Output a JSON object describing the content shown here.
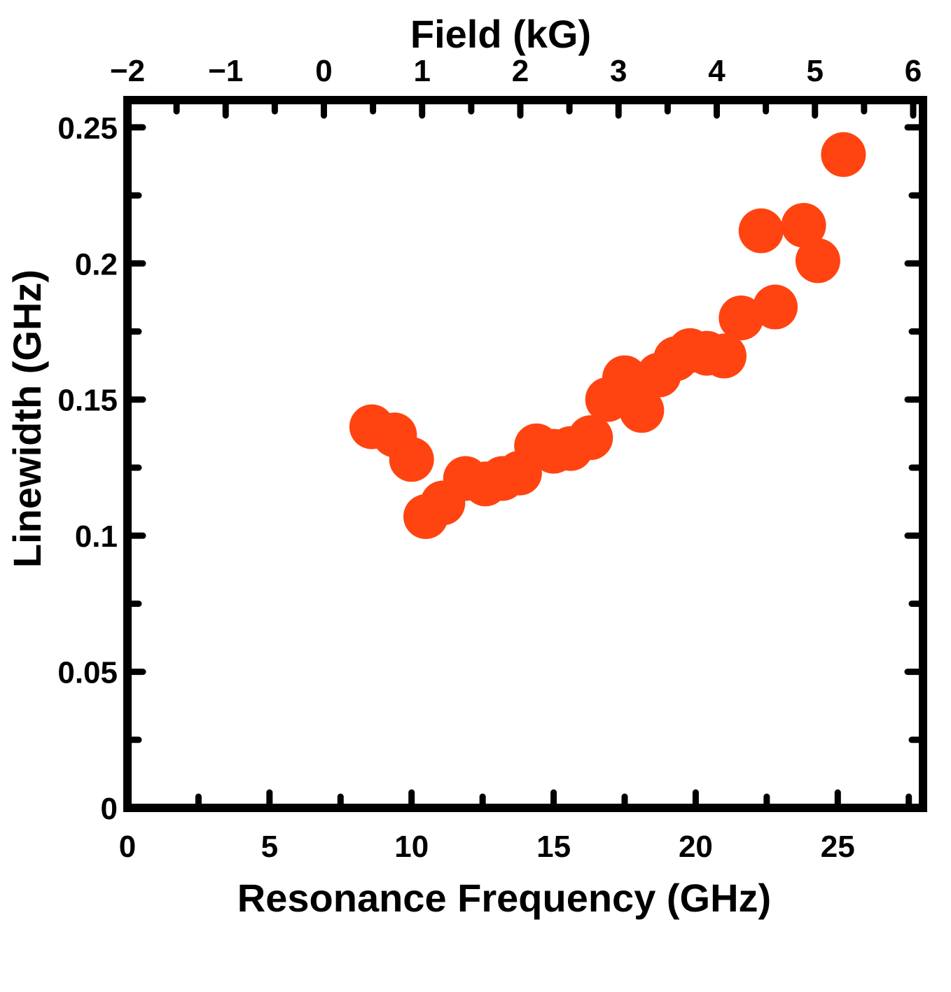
{
  "chart_data": {
    "type": "scatter",
    "title": "",
    "xlabel": "Resonance Frequency (GHz)",
    "ylabel": "Linewidth (GHz)",
    "top_xlabel": "Field (kG)",
    "xlim": [
      0,
      28
    ],
    "ylim": [
      0,
      0.26
    ],
    "top_xlim": [
      -2,
      6.1
    ],
    "xticks": [
      0,
      5,
      10,
      15,
      20,
      25
    ],
    "xtick_labels": [
      "0",
      "5",
      "10",
      "15",
      "20",
      "25"
    ],
    "yticks": [
      0,
      0.05,
      0.1,
      0.15,
      0.2,
      0.25
    ],
    "ytick_labels": [
      "0",
      "0.05",
      "0.1",
      "0.15",
      "0.2",
      "0.25"
    ],
    "top_xticks": [
      -2,
      -1,
      0,
      1,
      2,
      3,
      4,
      5,
      6
    ],
    "top_xtick_labels": [
      "−2",
      "−1",
      "0",
      "1",
      "2",
      "3",
      "4",
      "5",
      "6"
    ],
    "grid": false,
    "marker_color": "#ff4411",
    "series": [
      {
        "x": [
          8.6,
          9.4,
          10.0,
          10.5,
          11.1,
          11.9,
          12.6,
          13.2,
          13.8,
          14.4,
          15.0,
          15.6,
          16.3,
          16.9,
          17.5,
          18.1,
          18.7,
          19.3,
          19.8,
          20.4,
          21.0,
          21.6,
          22.3,
          22.8,
          23.8,
          24.3,
          25.2
        ],
        "y": [
          0.14,
          0.137,
          0.128,
          0.107,
          0.112,
          0.121,
          0.119,
          0.121,
          0.123,
          0.133,
          0.131,
          0.132,
          0.136,
          0.15,
          0.158,
          0.146,
          0.159,
          0.165,
          0.168,
          0.167,
          0.166,
          0.18,
          0.212,
          0.184,
          0.214,
          0.201,
          0.24
        ]
      }
    ]
  }
}
